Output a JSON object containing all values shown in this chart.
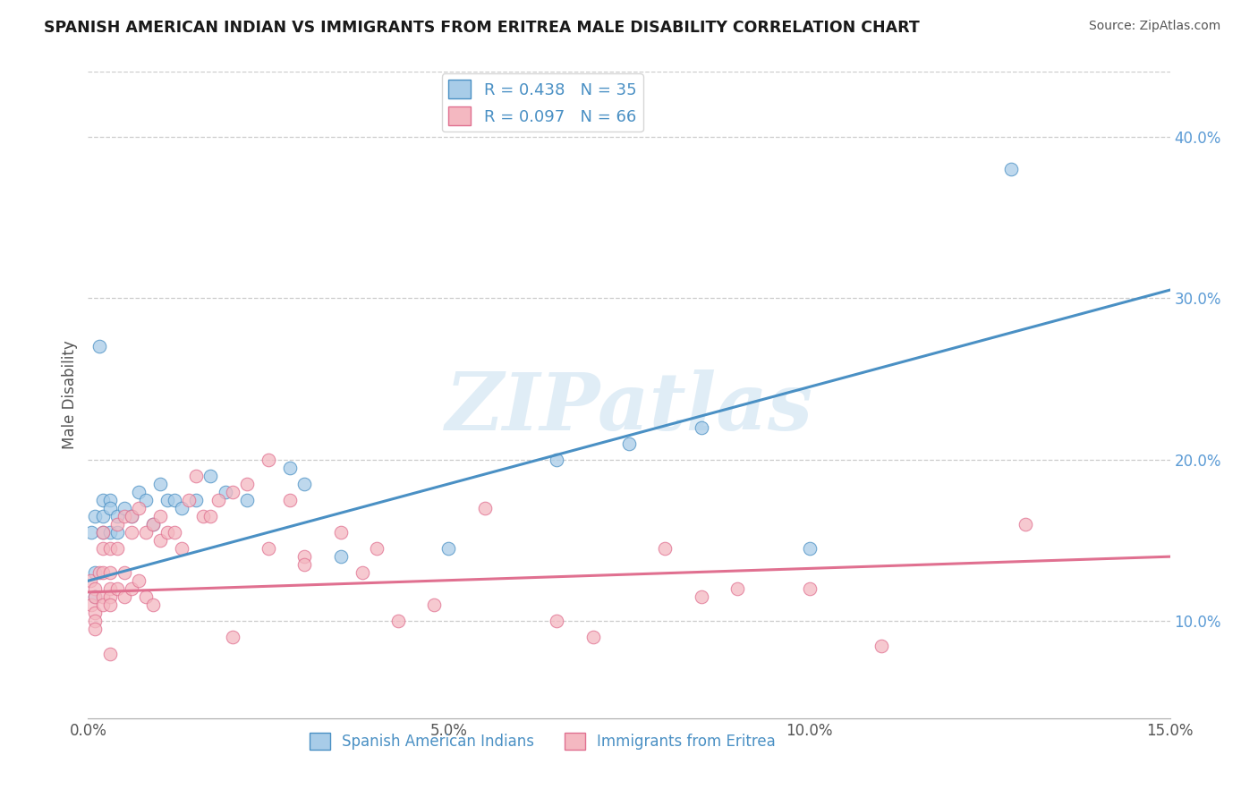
{
  "title": "SPANISH AMERICAN INDIAN VS IMMIGRANTS FROM ERITREA MALE DISABILITY CORRELATION CHART",
  "source": "Source: ZipAtlas.com",
  "ylabel": "Male Disability",
  "legend_label_blue": "Spanish American Indians",
  "legend_label_pink": "Immigrants from Eritrea",
  "R_blue": 0.438,
  "N_blue": 35,
  "R_pink": 0.097,
  "N_pink": 66,
  "color_blue": "#a8cce8",
  "color_pink": "#f4b8c1",
  "color_blue_line": "#4a90c4",
  "color_pink_line": "#e07090",
  "xlim": [
    0.0,
    0.15
  ],
  "ylim": [
    0.04,
    0.44
  ],
  "xticks": [
    0.0,
    0.05,
    0.1,
    0.15
  ],
  "xtick_labels": [
    "0.0%",
    "5.0%",
    "10.0%",
    "15.0%"
  ],
  "yticks_right": [
    0.1,
    0.2,
    0.3,
    0.4
  ],
  "ytick_labels_right": [
    "10.0%",
    "20.0%",
    "30.0%",
    "40.0%"
  ],
  "watermark": "ZIPatlas",
  "blue_trend_x0": 0.0,
  "blue_trend_y0": 0.125,
  "blue_trend_x1": 0.15,
  "blue_trend_y1": 0.305,
  "pink_trend_x0": 0.0,
  "pink_trend_y0": 0.118,
  "pink_trend_x1": 0.15,
  "pink_trend_y1": 0.14,
  "blue_x": [
    0.0005,
    0.001,
    0.001,
    0.0015,
    0.002,
    0.002,
    0.002,
    0.003,
    0.003,
    0.003,
    0.004,
    0.004,
    0.005,
    0.006,
    0.007,
    0.008,
    0.009,
    0.01,
    0.011,
    0.012,
    0.013,
    0.015,
    0.017,
    0.019,
    0.022,
    0.028,
    0.03,
    0.035,
    0.05,
    0.065,
    0.075,
    0.085,
    0.1,
    0.128,
    0.001
  ],
  "blue_y": [
    0.155,
    0.13,
    0.165,
    0.27,
    0.175,
    0.165,
    0.155,
    0.155,
    0.175,
    0.17,
    0.165,
    0.155,
    0.17,
    0.165,
    0.18,
    0.175,
    0.16,
    0.185,
    0.175,
    0.175,
    0.17,
    0.175,
    0.19,
    0.18,
    0.175,
    0.195,
    0.185,
    0.14,
    0.145,
    0.2,
    0.21,
    0.22,
    0.145,
    0.38,
    0.115
  ],
  "pink_x": [
    0.0003,
    0.0005,
    0.001,
    0.001,
    0.001,
    0.001,
    0.001,
    0.0015,
    0.002,
    0.002,
    0.002,
    0.002,
    0.002,
    0.003,
    0.003,
    0.003,
    0.003,
    0.003,
    0.004,
    0.004,
    0.004,
    0.005,
    0.005,
    0.005,
    0.006,
    0.006,
    0.006,
    0.007,
    0.007,
    0.008,
    0.008,
    0.009,
    0.009,
    0.01,
    0.01,
    0.011,
    0.012,
    0.013,
    0.014,
    0.015,
    0.016,
    0.017,
    0.018,
    0.02,
    0.022,
    0.025,
    0.028,
    0.03,
    0.03,
    0.035,
    0.038,
    0.04,
    0.043,
    0.048,
    0.055,
    0.065,
    0.07,
    0.08,
    0.085,
    0.09,
    0.1,
    0.11,
    0.13,
    0.025,
    0.02,
    0.003
  ],
  "pink_y": [
    0.125,
    0.11,
    0.12,
    0.115,
    0.105,
    0.1,
    0.095,
    0.13,
    0.145,
    0.155,
    0.13,
    0.115,
    0.11,
    0.145,
    0.13,
    0.12,
    0.115,
    0.11,
    0.16,
    0.145,
    0.12,
    0.165,
    0.13,
    0.115,
    0.165,
    0.155,
    0.12,
    0.17,
    0.125,
    0.155,
    0.115,
    0.16,
    0.11,
    0.165,
    0.15,
    0.155,
    0.155,
    0.145,
    0.175,
    0.19,
    0.165,
    0.165,
    0.175,
    0.18,
    0.185,
    0.145,
    0.175,
    0.14,
    0.135,
    0.155,
    0.13,
    0.145,
    0.1,
    0.11,
    0.17,
    0.1,
    0.09,
    0.145,
    0.115,
    0.12,
    0.12,
    0.085,
    0.16,
    0.2,
    0.09,
    0.08
  ]
}
